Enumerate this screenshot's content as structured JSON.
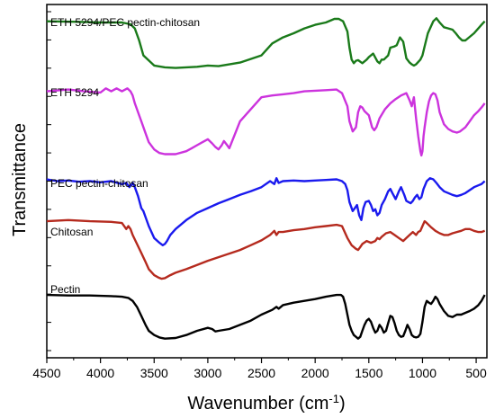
{
  "chart_data": {
    "type": "line",
    "xlabel": "Wavenumber (cm",
    "xlabel_sup": "-1",
    "xlabel_suffix": ")",
    "ylabel": "Transmittance",
    "xlim": [
      4500,
      400
    ],
    "x_reversed": true,
    "xticks": [
      4500,
      4000,
      3500,
      3000,
      2500,
      2000,
      1500,
      1000,
      500
    ],
    "y_tick_labels": false,
    "grid": false,
    "legend": "inline labels above each trace",
    "series": [
      {
        "name": "ETH 5294/PEC pectin-chitosan",
        "color": "#1a7a1a",
        "x": [
          4500,
          4200,
          4000,
          3800,
          3720,
          3680,
          3640,
          3600,
          3500,
          3400,
          3300,
          3100,
          3000,
          2900,
          2800,
          2700,
          2500,
          2400,
          2300,
          2200,
          2100,
          2000,
          1900,
          1820,
          1780,
          1740,
          1700,
          1680,
          1660,
          1640,
          1620,
          1600,
          1560,
          1520,
          1500,
          1460,
          1420,
          1400,
          1380,
          1360,
          1320,
          1300,
          1260,
          1240,
          1210,
          1180,
          1150,
          1120,
          1100,
          1080,
          1060,
          1040,
          1020,
          1000,
          980,
          950,
          900,
          870,
          840,
          800,
          760,
          720,
          690,
          660,
          630,
          600,
          560,
          520,
          480,
          450,
          420
        ],
        "y": [
          8.62,
          8.61,
          8.6,
          8.6,
          8.57,
          8.5,
          8.3,
          8.05,
          7.88,
          7.85,
          7.84,
          7.86,
          7.88,
          7.87,
          7.9,
          7.93,
          8.05,
          8.25,
          8.35,
          8.42,
          8.5,
          8.56,
          8.6,
          8.66,
          8.66,
          8.62,
          8.45,
          8.18,
          7.98,
          7.92,
          7.96,
          7.97,
          7.92,
          7.98,
          8.02,
          8.08,
          7.95,
          7.92,
          7.98,
          7.98,
          8.05,
          8.18,
          8.2,
          8.22,
          8.35,
          8.28,
          8.0,
          7.93,
          7.9,
          7.88,
          7.9,
          7.94,
          7.98,
          8.05,
          8.2,
          8.42,
          8.62,
          8.67,
          8.6,
          8.52,
          8.5,
          8.48,
          8.42,
          8.35,
          8.3,
          8.3,
          8.36,
          8.42,
          8.5,
          8.56,
          8.62
        ]
      },
      {
        "name": "ETH 5294",
        "color": "#cc33dd",
        "x": [
          4500,
          4300,
          4150,
          4000,
          3950,
          3900,
          3850,
          3800,
          3750,
          3720,
          3700,
          3680,
          3650,
          3620,
          3580,
          3550,
          3500,
          3450,
          3400,
          3300,
          3200,
          3150,
          3100,
          3050,
          3000,
          2960,
          2930,
          2900,
          2870,
          2850,
          2820,
          2800,
          2700,
          2600,
          2500,
          2400,
          2300,
          2200,
          2100,
          2000,
          1900,
          1800,
          1750,
          1700,
          1680,
          1650,
          1620,
          1600,
          1580,
          1560,
          1540,
          1500,
          1470,
          1450,
          1430,
          1400,
          1350,
          1300,
          1250,
          1200,
          1150,
          1120,
          1100,
          1080,
          1060,
          1040,
          1020,
          1010,
          1000,
          990,
          980,
          960,
          940,
          920,
          900,
          880,
          860,
          840,
          800,
          760,
          720,
          680,
          650,
          600,
          560,
          520,
          480,
          450,
          420
        ],
        "y": [
          7.45,
          7.48,
          7.45,
          7.43,
          7.5,
          7.45,
          7.5,
          7.45,
          7.5,
          7.45,
          7.38,
          7.25,
          7.1,
          6.95,
          6.75,
          6.6,
          6.48,
          6.42,
          6.4,
          6.4,
          6.45,
          6.5,
          6.55,
          6.6,
          6.65,
          6.58,
          6.52,
          6.48,
          6.55,
          6.62,
          6.55,
          6.5,
          6.95,
          7.15,
          7.35,
          7.38,
          7.4,
          7.42,
          7.45,
          7.46,
          7.47,
          7.48,
          7.42,
          7.2,
          6.95,
          6.78,
          6.85,
          7.1,
          7.2,
          7.18,
          7.12,
          7.05,
          6.85,
          6.8,
          6.85,
          7.0,
          7.15,
          7.25,
          7.32,
          7.38,
          7.42,
          7.3,
          7.2,
          7.35,
          7.0,
          6.7,
          6.45,
          6.38,
          6.45,
          6.7,
          6.85,
          7.1,
          7.28,
          7.38,
          7.42,
          7.4,
          7.3,
          7.1,
          6.9,
          6.82,
          6.78,
          6.76,
          6.78,
          6.85,
          6.95,
          7.05,
          7.12,
          7.18,
          7.25
        ]
      },
      {
        "name": "PEC pectin-chitosan",
        "color": "#1a1aee",
        "x": [
          4500,
          4400,
          4300,
          4200,
          4100,
          4000,
          3900,
          3800,
          3760,
          3730,
          3700,
          3680,
          3650,
          3620,
          3600,
          3580,
          3550,
          3500,
          3450,
          3420,
          3400,
          3380,
          3350,
          3300,
          3200,
          3100,
          3000,
          2900,
          2800,
          2700,
          2600,
          2500,
          2420,
          2380,
          2360,
          2340,
          2300,
          2200,
          2100,
          2000,
          1900,
          1800,
          1750,
          1720,
          1700,
          1680,
          1650,
          1630,
          1610,
          1590,
          1570,
          1550,
          1530,
          1500,
          1480,
          1460,
          1440,
          1420,
          1400,
          1380,
          1350,
          1320,
          1300,
          1280,
          1250,
          1220,
          1200,
          1170,
          1150,
          1130,
          1110,
          1090,
          1070,
          1050,
          1030,
          1010,
          990,
          960,
          930,
          900,
          870,
          840,
          800,
          760,
          720,
          680,
          640,
          600,
          560,
          520,
          480,
          450,
          420
        ],
        "y": [
          5.98,
          5.95,
          5.96,
          5.94,
          5.95,
          5.93,
          5.95,
          5.9,
          5.92,
          5.85,
          5.92,
          5.85,
          5.7,
          5.5,
          5.45,
          5.35,
          5.2,
          5.0,
          4.92,
          4.88,
          4.9,
          4.95,
          5.05,
          5.15,
          5.3,
          5.42,
          5.5,
          5.58,
          5.65,
          5.72,
          5.78,
          5.85,
          5.95,
          5.9,
          6.0,
          5.92,
          5.95,
          5.96,
          5.95,
          5.96,
          5.97,
          5.98,
          5.95,
          5.9,
          5.8,
          5.6,
          5.45,
          5.5,
          5.55,
          5.38,
          5.3,
          5.5,
          5.6,
          5.62,
          5.55,
          5.45,
          5.48,
          5.38,
          5.42,
          5.55,
          5.65,
          5.78,
          5.82,
          5.75,
          5.65,
          5.78,
          5.85,
          5.72,
          5.62,
          5.6,
          5.58,
          5.62,
          5.68,
          5.72,
          5.65,
          5.68,
          5.82,
          5.95,
          6.0,
          5.98,
          5.92,
          5.85,
          5.78,
          5.75,
          5.72,
          5.7,
          5.72,
          5.75,
          5.8,
          5.85,
          5.88,
          5.9,
          5.95
        ]
      },
      {
        "name": "Chitosan",
        "color": "#b52a1e",
        "x": [
          4500,
          4300,
          4100,
          3900,
          3800,
          3760,
          3740,
          3720,
          3700,
          3660,
          3620,
          3580,
          3550,
          3500,
          3460,
          3430,
          3400,
          3350,
          3300,
          3200,
          3100,
          3000,
          2900,
          2800,
          2700,
          2600,
          2500,
          2420,
          2380,
          2360,
          2340,
          2300,
          2200,
          2100,
          2000,
          1900,
          1800,
          1750,
          1700,
          1660,
          1640,
          1620,
          1600,
          1580,
          1560,
          1520,
          1480,
          1440,
          1420,
          1400,
          1380,
          1340,
          1300,
          1260,
          1220,
          1180,
          1150,
          1120,
          1090,
          1060,
          1040,
          1020,
          1000,
          980,
          960,
          920,
          880,
          840,
          800,
          760,
          720,
          680,
          640,
          600,
          560,
          520,
          480,
          450,
          420
        ],
        "y": [
          5.28,
          5.3,
          5.28,
          5.27,
          5.25,
          5.15,
          5.2,
          5.15,
          5.05,
          4.9,
          4.75,
          4.6,
          4.48,
          4.38,
          4.34,
          4.32,
          4.33,
          4.38,
          4.42,
          4.48,
          4.55,
          4.62,
          4.68,
          4.74,
          4.8,
          4.88,
          4.96,
          5.05,
          5.12,
          5.05,
          5.1,
          5.1,
          5.13,
          5.15,
          5.18,
          5.2,
          5.22,
          5.2,
          5.0,
          4.88,
          4.85,
          4.82,
          4.8,
          4.85,
          4.9,
          4.95,
          4.92,
          4.95,
          5.0,
          4.98,
          5.02,
          5.08,
          5.1,
          5.05,
          5.0,
          4.95,
          5.0,
          5.05,
          5.1,
          5.05,
          5.1,
          5.12,
          5.2,
          5.28,
          5.25,
          5.18,
          5.12,
          5.08,
          5.05,
          5.05,
          5.08,
          5.1,
          5.12,
          5.15,
          5.15,
          5.12,
          5.1,
          5.1,
          5.12
        ]
      },
      {
        "name": "Pectin",
        "color": "#000000",
        "x": [
          4500,
          4300,
          4100,
          3900,
          3800,
          3740,
          3700,
          3660,
          3620,
          3580,
          3550,
          3500,
          3450,
          3400,
          3300,
          3200,
          3100,
          3000,
          2960,
          2930,
          2900,
          2800,
          2700,
          2600,
          2500,
          2400,
          2360,
          2340,
          2300,
          2200,
          2100,
          2000,
          1900,
          1800,
          1760,
          1740,
          1720,
          1700,
          1680,
          1660,
          1640,
          1620,
          1600,
          1580,
          1560,
          1540,
          1520,
          1500,
          1480,
          1460,
          1440,
          1420,
          1400,
          1380,
          1360,
          1340,
          1320,
          1300,
          1280,
          1260,
          1240,
          1220,
          1200,
          1180,
          1160,
          1140,
          1120,
          1100,
          1080,
          1060,
          1040,
          1020,
          1000,
          980,
          960,
          940,
          920,
          900,
          880,
          860,
          840,
          800,
          760,
          720,
          680,
          640,
          600,
          560,
          520,
          480,
          450,
          420
        ],
        "y": [
          4.05,
          4.04,
          4.04,
          4.03,
          4.02,
          4.0,
          3.95,
          3.85,
          3.7,
          3.55,
          3.45,
          3.38,
          3.34,
          3.32,
          3.33,
          3.38,
          3.45,
          3.5,
          3.48,
          3.44,
          3.45,
          3.48,
          3.55,
          3.62,
          3.72,
          3.8,
          3.85,
          3.82,
          3.88,
          3.92,
          3.95,
          3.98,
          4.02,
          4.05,
          4.05,
          4.02,
          3.9,
          3.72,
          3.55,
          3.45,
          3.38,
          3.35,
          3.32,
          3.35,
          3.45,
          3.55,
          3.62,
          3.65,
          3.6,
          3.5,
          3.42,
          3.45,
          3.55,
          3.5,
          3.42,
          3.45,
          3.58,
          3.7,
          3.68,
          3.58,
          3.45,
          3.38,
          3.35,
          3.36,
          3.45,
          3.55,
          3.48,
          3.38,
          3.35,
          3.34,
          3.35,
          3.4,
          3.6,
          3.85,
          3.95,
          3.92,
          3.9,
          3.95,
          4.02,
          3.98,
          3.9,
          3.78,
          3.7,
          3.68,
          3.72,
          3.72,
          3.75,
          3.78,
          3.82,
          3.88,
          3.95,
          4.05
        ]
      }
    ]
  }
}
